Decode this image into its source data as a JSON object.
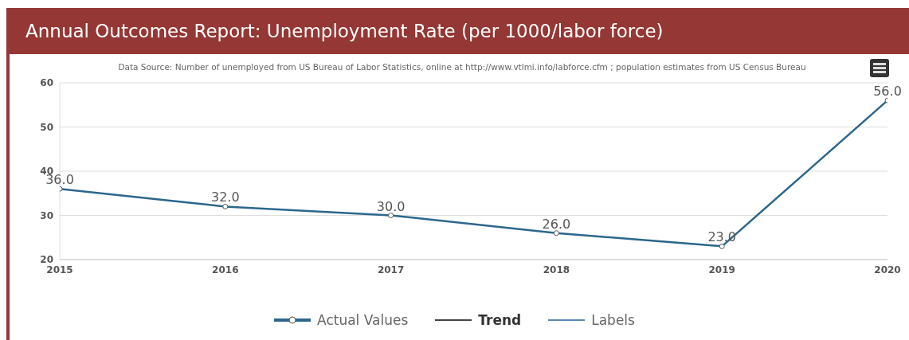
{
  "chart_data": {
    "type": "line",
    "title": "Annual Outcomes Report: Unemployment Rate (per 1000/labor force)",
    "annotations": [
      "Data Source: Number of unemployed from US Bureau of Labor Statistics, online at http://www.vtlmi.info/labforce.cfm ; population estimates from US Census Bureau"
    ],
    "categories": [
      "2015",
      "2016",
      "2017",
      "2018",
      "2019",
      "2020"
    ],
    "series": [
      {
        "name": "Actual Values",
        "color": "#2b678c",
        "values": [
          36.0,
          32.0,
          30.0,
          26.0,
          23.0,
          56.0
        ],
        "value_labels": [
          "36.0",
          "32.0",
          "30.0",
          "26.0",
          "23.0",
          "56.0"
        ],
        "marker": "circle"
      },
      {
        "name": "Trend",
        "color": "#444444",
        "values": [
          null,
          null,
          null,
          null,
          null,
          null
        ]
      },
      {
        "name": "Labels",
        "color": "#5b87b5",
        "values": [
          null,
          null,
          null,
          null,
          null,
          null
        ]
      }
    ],
    "ylim": [
      20,
      60
    ],
    "yticks": [
      20,
      30,
      40,
      50,
      60
    ],
    "grid": "y",
    "legend": "bottom"
  }
}
